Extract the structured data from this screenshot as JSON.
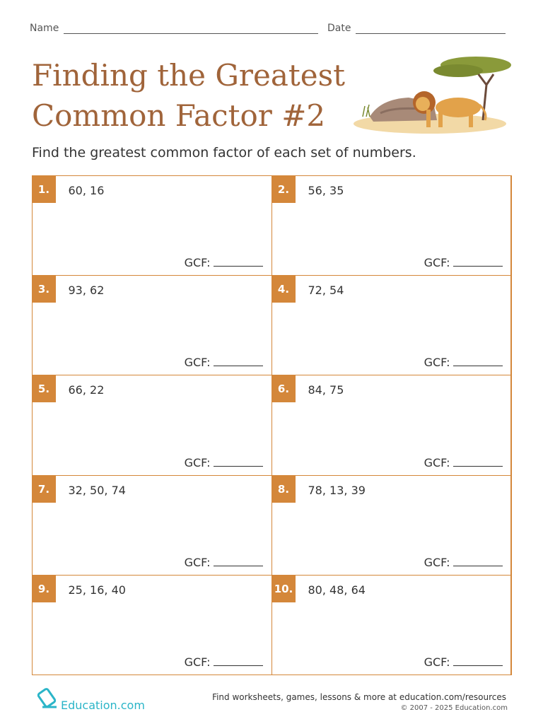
{
  "header": {
    "name_label": "Name",
    "date_label": "Date"
  },
  "title": {
    "line1": "Finding the Greatest",
    "line2": "Common Factor #2"
  },
  "instruction": "Find the greatest common factor of each set of numbers.",
  "problems": [
    {
      "number": "1.",
      "numbers": "60, 16",
      "answer_label": "GCF:"
    },
    {
      "number": "2.",
      "numbers": "56, 35",
      "answer_label": "GCF:"
    },
    {
      "number": "3.",
      "numbers": "93, 62",
      "answer_label": "GCF:"
    },
    {
      "number": "4.",
      "numbers": "72, 54",
      "answer_label": "GCF:"
    },
    {
      "number": "5.",
      "numbers": "66, 22",
      "answer_label": "GCF:"
    },
    {
      "number": "6.",
      "numbers": "84, 75",
      "answer_label": "GCF:"
    },
    {
      "number": "7.",
      "numbers": "32, 50, 74",
      "answer_label": "GCF:"
    },
    {
      "number": "8.",
      "numbers": "78, 13, 39",
      "answer_label": "GCF:"
    },
    {
      "number": "9.",
      "numbers": "25, 16, 40",
      "answer_label": "GCF:"
    },
    {
      "number": "10.",
      "numbers": "80, 48, 64",
      "answer_label": "GCF:"
    }
  ],
  "footer": {
    "brand": "Education.com",
    "tagline": "Find worksheets, games, lessons & more at education.com/resources",
    "copyright": "© 2007 - 2025 Education.com"
  }
}
